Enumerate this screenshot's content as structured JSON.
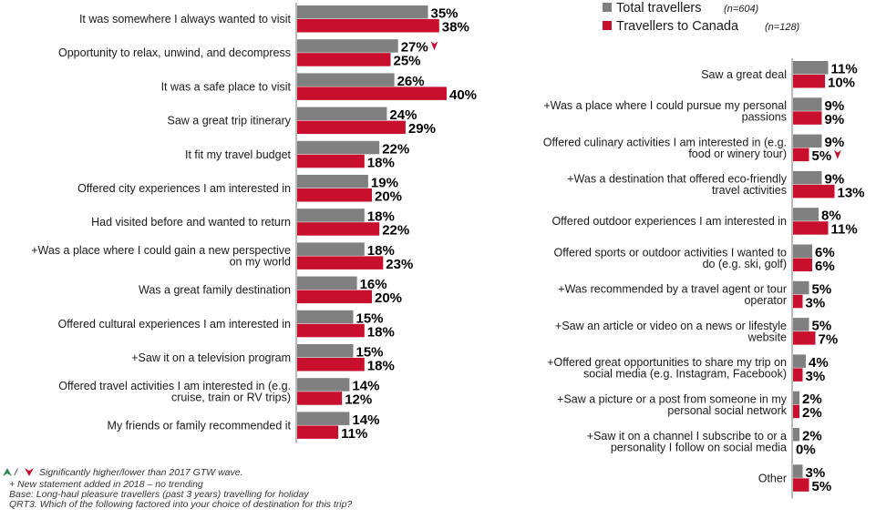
{
  "legend": {
    "total": {
      "label": "Total travellers",
      "n": "(n=604)"
    },
    "canada": {
      "label": "Travellers to Canada",
      "n": "(n=128)"
    }
  },
  "colors": {
    "total": "#808080",
    "canada": "#c8102e",
    "axis": "#777777",
    "up": "#2e8b57",
    "down": "#c8102e"
  },
  "chart_data": [
    {
      "type": "bar",
      "orientation": "horizontal",
      "series": [
        {
          "name": "Total travellers",
          "values": [
            35,
            27,
            26,
            24,
            22,
            19,
            18,
            18,
            16,
            15,
            15,
            14,
            14
          ]
        },
        {
          "name": "Travellers to Canada",
          "values": [
            38,
            25,
            40,
            29,
            18,
            20,
            22,
            23,
            20,
            18,
            18,
            12,
            11
          ]
        }
      ],
      "categories": [
        [
          "It was somewhere I always wanted to visit"
        ],
        [
          "Opportunity to relax, unwind, and decompress"
        ],
        [
          "It was a safe place to visit"
        ],
        [
          "Saw a great trip itinerary"
        ],
        [
          "It fit my travel budget"
        ],
        [
          "Offered city experiences I am interested in"
        ],
        [
          "Had visited before and wanted to return"
        ],
        [
          "+Was a place where I could gain a new perspective",
          "on my world"
        ],
        [
          "Was a great family destination"
        ],
        [
          "Offered cultural experiences I am interested in"
        ],
        [
          "+Saw it on a television program"
        ],
        [
          "Offered travel activities I am interested in (e.g.",
          "cruise, train or RV trips)"
        ],
        [
          "My friends or family recommended it"
        ]
      ],
      "markers": [
        {
          "category_index": 1,
          "series": 0,
          "direction": "down"
        }
      ],
      "value_suffix": "%"
    },
    {
      "type": "bar",
      "orientation": "horizontal",
      "series": [
        {
          "name": "Total travellers",
          "values": [
            11,
            9,
            9,
            9,
            8,
            6,
            5,
            5,
            4,
            2,
            2,
            3
          ]
        },
        {
          "name": "Travellers to Canada",
          "values": [
            10,
            9,
            5,
            13,
            11,
            6,
            3,
            7,
            3,
            2,
            0,
            5
          ]
        }
      ],
      "categories": [
        [
          "Saw a great deal"
        ],
        [
          "+Was a place where I could pursue my personal",
          "passions"
        ],
        [
          "Offered culinary activities I am interested in (e.g.",
          "food or winery tour)"
        ],
        [
          "+Was a destination that offered eco-friendly",
          "travel activities"
        ],
        [
          "Offered outdoor experiences I am interested in"
        ],
        [
          "Offered sports or outdoor activities I wanted to",
          "do (e.g. ski, golf)"
        ],
        [
          "+Was recommended by a travel agent or tour",
          "operator"
        ],
        [
          "+Saw an article or video on a news or lifestyle",
          "website"
        ],
        [
          "+Offered great opportunities to share my trip on",
          "social media (e.g. Instagram, Facebook)"
        ],
        [
          "+Saw a picture or a post from someone in my",
          "personal social network"
        ],
        [
          "+Saw it on a channel I subscribe to or a",
          "personality I follow on social media"
        ],
        [
          "Other"
        ]
      ],
      "markers": [
        {
          "category_index": 2,
          "series": 1,
          "direction": "down"
        }
      ],
      "value_suffix": "%"
    }
  ],
  "footnotes": {
    "sig": "Significantly higher/lower than 2017 GTW wave.",
    "sig_sep": "/",
    "new": "+ New statement added in 2018 – no trending",
    "base": "Base: Long-haul pleasure travellers (past 3 years) travelling for holiday",
    "question": "QRT3. Which of the following factored into your choice of destination for this trip?"
  }
}
